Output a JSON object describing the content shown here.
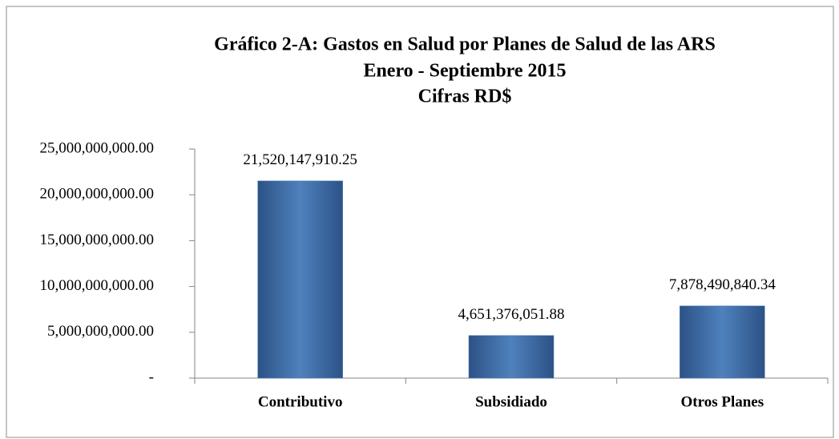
{
  "chart_data": {
    "type": "bar",
    "title": [
      "Gráfico 2-A: Gastos en Salud por  Planes de Salud de las ARS",
      "Enero - Septiembre 2015",
      "Cifras RD$"
    ],
    "categories": [
      "Contributivo",
      "Subsidiado",
      "Otros Planes"
    ],
    "values": [
      21520147910.25,
      4651376051.88,
      7878490840.34
    ],
    "value_labels": [
      "21,520,147,910.25",
      "4,651,376,051.88",
      "7,878,490,840.34"
    ],
    "color": "#4f81bd",
    "ylim": [
      0,
      25000000000
    ],
    "yticks": [
      {
        "value": 0,
        "label": "-"
      },
      {
        "value": 5000000000,
        "label": "5,000,000,000.00"
      },
      {
        "value": 10000000000,
        "label": "10,000,000,000.00"
      },
      {
        "value": 15000000000,
        "label": "15,000,000,000.00"
      },
      {
        "value": 20000000000,
        "label": "20,000,000,000.00"
      },
      {
        "value": 25000000000,
        "label": "25,000,000,000.00"
      }
    ],
    "grid": false
  }
}
